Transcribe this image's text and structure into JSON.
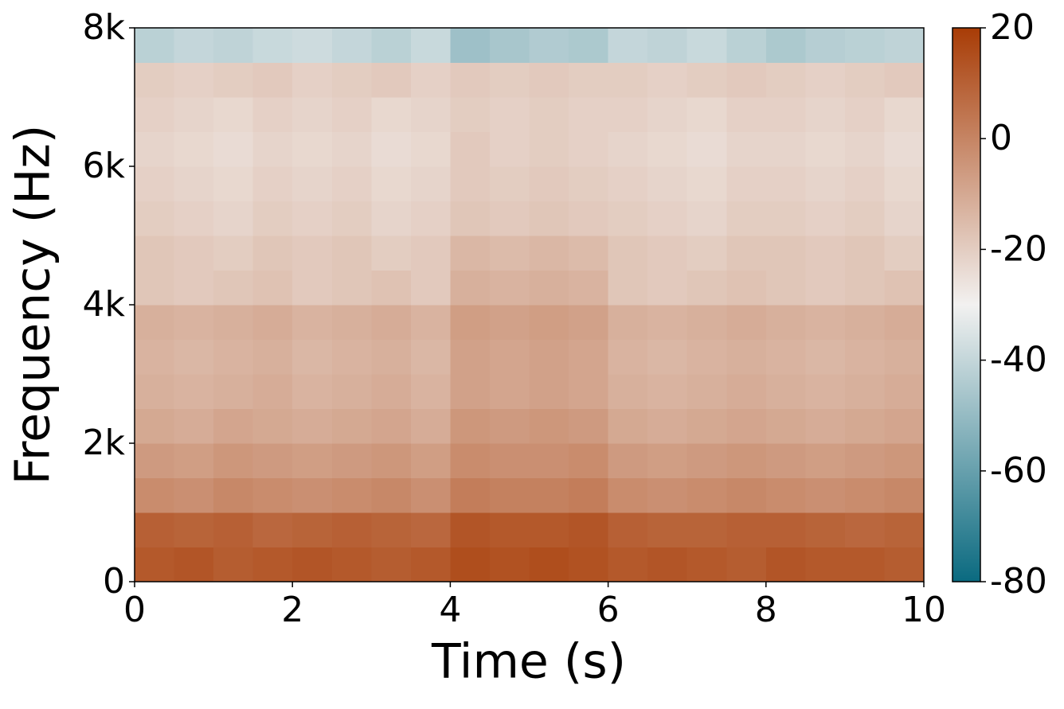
{
  "chart_data": {
    "type": "heatmap",
    "xlabel": "Time (s)",
    "ylabel": "Frequency (Hz)",
    "xbins": [
      0,
      0.5,
      1,
      1.5,
      2,
      2.5,
      3,
      3.5,
      4,
      4.5,
      5,
      5.5,
      6,
      6.5,
      7,
      7.5,
      8,
      8.5,
      9,
      9.5,
      10
    ],
    "ybins": [
      0,
      500,
      1000,
      1500,
      2000,
      2500,
      3000,
      3500,
      4000,
      4500,
      5000,
      5500,
      6000,
      6500,
      7000,
      7500,
      8000
    ],
    "z": [
      [
        12,
        13,
        11,
        12,
        13,
        12,
        11,
        12,
        15,
        14,
        15,
        14,
        12,
        13,
        12,
        11,
        13,
        12,
        12,
        11
      ],
      [
        10,
        9,
        10,
        8,
        9,
        10,
        9,
        8,
        13,
        12,
        12,
        13,
        10,
        9,
        9,
        10,
        10,
        9,
        8,
        9
      ],
      [
        -2,
        -3,
        -1,
        -2,
        -3,
        -2,
        -1,
        -3,
        2,
        1,
        1,
        2,
        -2,
        -3,
        -2,
        -1,
        -2,
        -3,
        -2,
        -1
      ],
      [
        -6,
        -7,
        -5,
        -6,
        -7,
        -6,
        -5,
        -7,
        -2,
        -3,
        -3,
        -2,
        -6,
        -7,
        -6,
        -5,
        -6,
        -7,
        -6,
        -5
      ],
      [
        -10,
        -11,
        -9,
        -10,
        -11,
        -10,
        -9,
        -11,
        -5,
        -6,
        -5,
        -6,
        -10,
        -11,
        -10,
        -9,
        -10,
        -11,
        -10,
        -9
      ],
      [
        -12,
        -13,
        -12,
        -11,
        -13,
        -12,
        -11,
        -13,
        -8,
        -9,
        -8,
        -9,
        -12,
        -13,
        -12,
        -11,
        -12,
        -13,
        -12,
        -11
      ],
      [
        -13,
        -14,
        -13,
        -12,
        -14,
        -13,
        -12,
        -14,
        -8,
        -9,
        -8,
        -9,
        -13,
        -14,
        -13,
        -12,
        -13,
        -14,
        -13,
        -12
      ],
      [
        -12,
        -13,
        -12,
        -11,
        -13,
        -12,
        -11,
        -13,
        -7,
        -8,
        -7,
        -8,
        -12,
        -13,
        -12,
        -11,
        -12,
        -13,
        -12,
        -11
      ],
      [
        -18,
        -19,
        -18,
        -17,
        -19,
        -18,
        -17,
        -19,
        -12,
        -13,
        -12,
        -13,
        -18,
        -19,
        -18,
        -17,
        -18,
        -19,
        -18,
        -17
      ],
      [
        -18,
        -19,
        -20,
        -18,
        -19,
        -18,
        -20,
        -19,
        -14,
        -15,
        -14,
        -15,
        -18,
        -19,
        -20,
        -18,
        -18,
        -19,
        -18,
        -20
      ],
      [
        -20,
        -21,
        -22,
        -20,
        -21,
        -20,
        -22,
        -21,
        -18,
        -19,
        -18,
        -19,
        -20,
        -21,
        -22,
        -20,
        -20,
        -21,
        -20,
        -22
      ],
      [
        -21,
        -22,
        -23,
        -21,
        -22,
        -21,
        -23,
        -22,
        -19,
        -20,
        -19,
        -20,
        -21,
        -22,
        -23,
        -21,
        -21,
        -22,
        -21,
        -23
      ],
      [
        -22,
        -23,
        -24,
        -22,
        -23,
        -22,
        -24,
        -23,
        -19,
        -21,
        -20,
        -21,
        -22,
        -23,
        -24,
        -22,
        -22,
        -23,
        -22,
        -24
      ],
      [
        -21,
        -22,
        -23,
        -21,
        -22,
        -21,
        -23,
        -22,
        -20,
        -21,
        -20,
        -21,
        -21,
        -22,
        -23,
        -21,
        -21,
        -22,
        -21,
        -23
      ],
      [
        -20,
        -21,
        -20,
        -19,
        -21,
        -20,
        -19,
        -21,
        -19,
        -20,
        -19,
        -20,
        -20,
        -21,
        -20,
        -19,
        -20,
        -21,
        -20,
        -19
      ],
      [
        -42,
        -40,
        -41,
        -39,
        -38,
        -40,
        -42,
        -39,
        -48,
        -46,
        -44,
        -45,
        -40,
        -41,
        -39,
        -42,
        -45,
        -43,
        -42,
        -41
      ]
    ],
    "xlim": [
      0,
      10
    ],
    "xticks": [
      0,
      2,
      4,
      6,
      8,
      10
    ],
    "ylim": [
      0,
      8000
    ],
    "yticks": [
      0,
      {
        "value": 2000,
        "label": "2k"
      },
      {
        "value": 4000,
        "label": "4k"
      },
      {
        "value": 6000,
        "label": "6k"
      },
      {
        "value": 8000,
        "label": "8k"
      }
    ],
    "zlim": [
      -80,
      20
    ],
    "zticks": [
      -80,
      -60,
      -40,
      -20,
      0,
      20
    ],
    "colormap": [
      "#0a6a80",
      "#f2f1f0",
      "#a83c06"
    ]
  }
}
